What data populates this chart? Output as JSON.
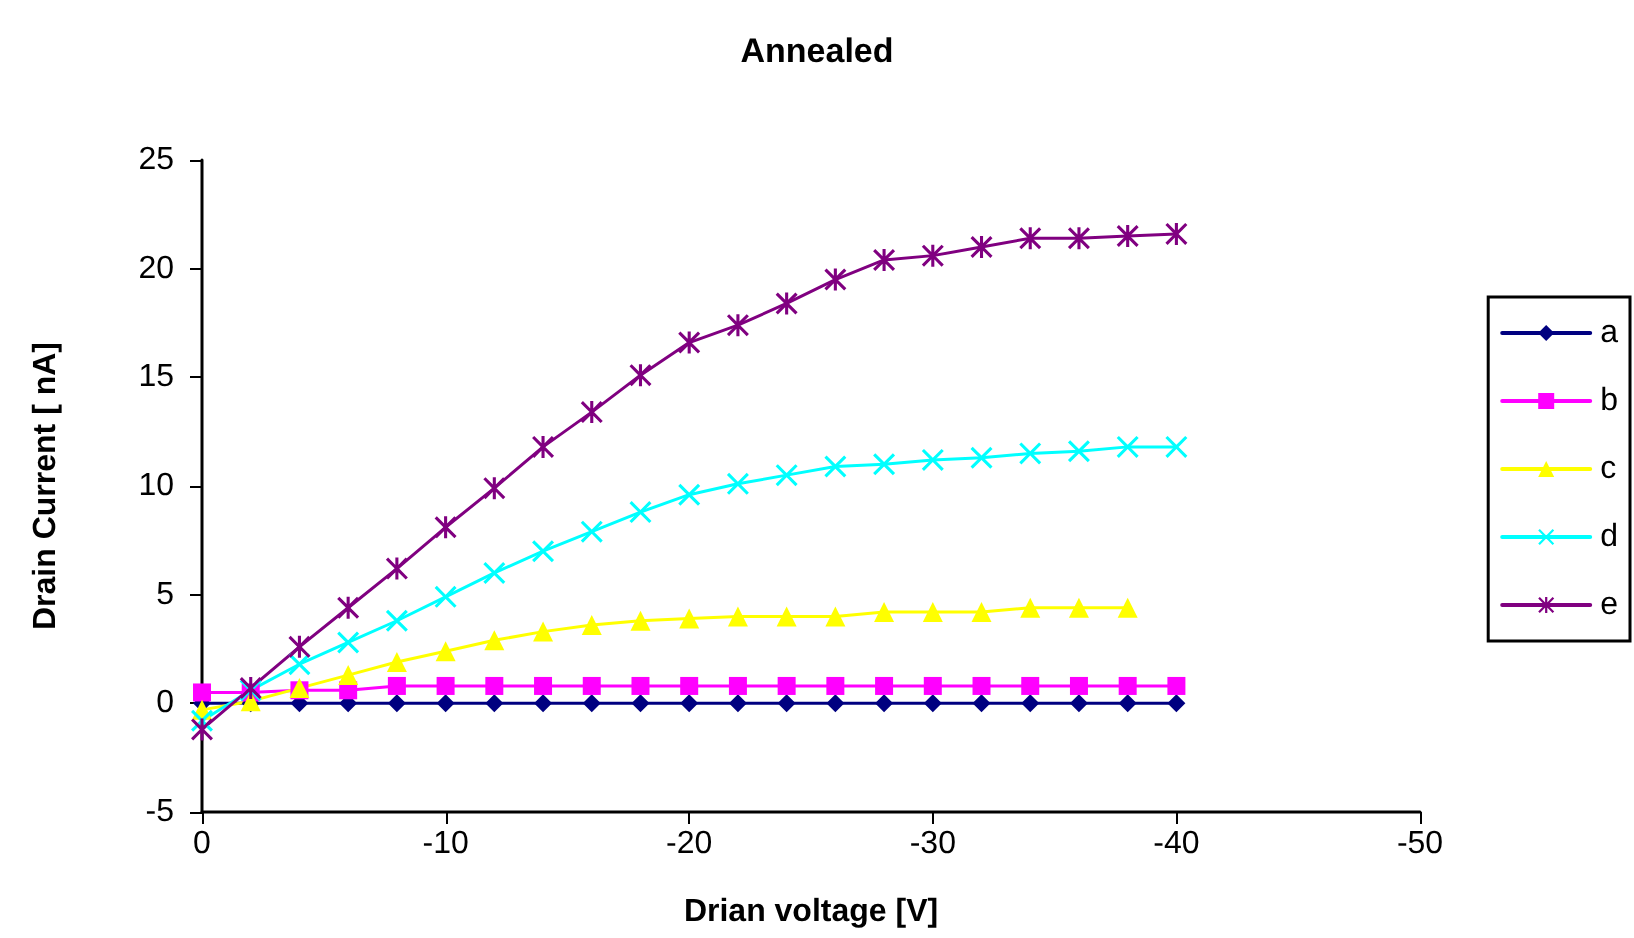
{
  "chart_data": {
    "type": "line",
    "title": "Annealed",
    "xlabel": "Drian voltage [V]",
    "ylabel": "Drain Current [ nA]",
    "x": [
      0,
      -2,
      -4,
      -6,
      -8,
      -10,
      -12,
      -14,
      -16,
      -18,
      -20,
      -22,
      -24,
      -26,
      -28,
      -30,
      -32,
      -34,
      -36,
      -38,
      -40
    ],
    "xlim": [
      0,
      -50
    ],
    "xticks": [
      0,
      -10,
      -20,
      -30,
      -40,
      -50
    ],
    "ylim": [
      -5,
      25
    ],
    "yticks": [
      -5,
      0,
      5,
      10,
      15,
      20,
      25
    ],
    "grid": false,
    "legend": "right",
    "line_style": "solid",
    "series": [
      {
        "name": "a",
        "color": "#000080",
        "marker": "diamond",
        "values": [
          0,
          0,
          0,
          0,
          0,
          0,
          0,
          0,
          0,
          0,
          0,
          0,
          0,
          0,
          0,
          0,
          0,
          0,
          0,
          0,
          0
        ]
      },
      {
        "name": "b",
        "color": "#ff00ff",
        "marker": "square",
        "values": [
          0.5,
          0.5,
          0.6,
          0.6,
          0.8,
          0.8,
          0.8,
          0.8,
          0.8,
          0.8,
          0.8,
          0.8,
          0.8,
          0.8,
          0.8,
          0.8,
          0.8,
          0.8,
          0.8,
          0.8,
          0.8
        ]
      },
      {
        "name": "c",
        "color": "#ffff00",
        "marker": "triangle",
        "values": [
          -0.3,
          0.1,
          0.7,
          1.3,
          1.9,
          2.4,
          2.9,
          3.3,
          3.6,
          3.8,
          3.9,
          4.0,
          4.0,
          4.0,
          4.2,
          4.2,
          4.2,
          4.4,
          4.4,
          4.4,
          null
        ]
      },
      {
        "name": "d",
        "color": "#00ffff",
        "marker": "cross",
        "values": [
          -0.8,
          0.6,
          1.8,
          2.8,
          3.8,
          4.9,
          6.0,
          7.0,
          7.9,
          8.8,
          9.6,
          10.1,
          10.5,
          10.9,
          11.0,
          11.2,
          11.3,
          11.5,
          11.6,
          11.8,
          11.8
        ]
      },
      {
        "name": "e",
        "color": "#800080",
        "marker": "star",
        "values": [
          -1.2,
          0.7,
          2.6,
          4.4,
          6.2,
          8.1,
          9.9,
          11.8,
          13.4,
          15.1,
          16.6,
          17.4,
          18.4,
          19.5,
          20.4,
          20.6,
          21.0,
          21.4,
          21.4,
          21.5,
          21.6
        ]
      }
    ]
  }
}
